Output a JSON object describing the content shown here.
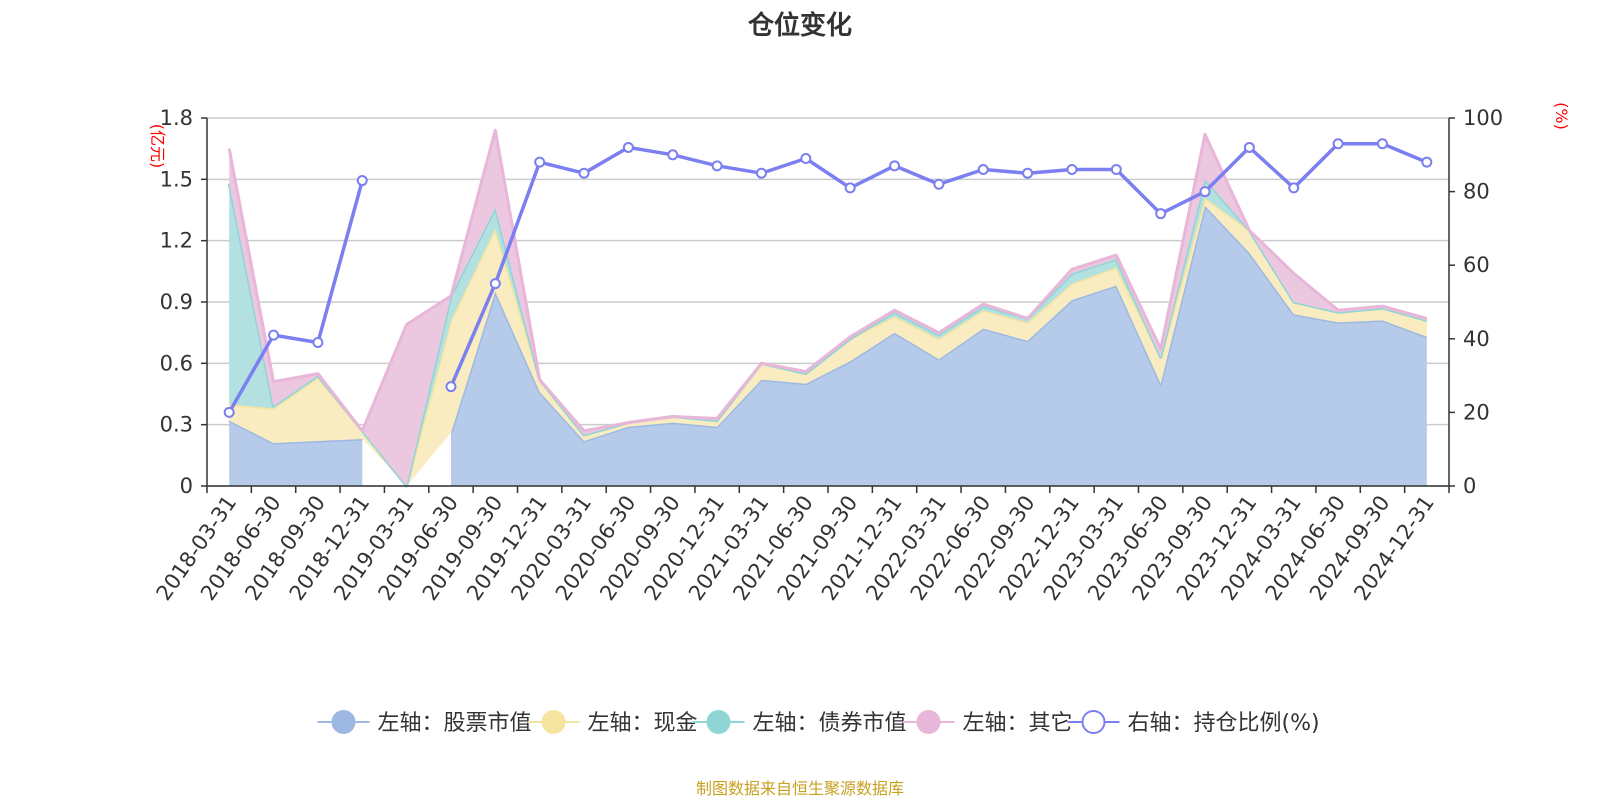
{
  "chart_data": {
    "type": "area",
    "title": "仓位变化",
    "left_axis_unit": "(亿元)",
    "right_axis_unit": "(%)",
    "categories": [
      "2018-03-31",
      "2018-06-30",
      "2018-09-30",
      "2018-12-31",
      "2019-03-31",
      "2019-06-30",
      "2019-09-30",
      "2019-12-31",
      "2020-03-31",
      "2020-06-30",
      "2020-09-30",
      "2020-12-31",
      "2021-03-31",
      "2021-06-30",
      "2021-09-30",
      "2021-12-31",
      "2022-03-31",
      "2022-06-30",
      "2022-09-30",
      "2022-12-31",
      "2023-03-31",
      "2023-06-30",
      "2023-09-30",
      "2023-12-31",
      "2024-03-31",
      "2024-06-30",
      "2024-09-30",
      "2024-12-31"
    ],
    "y_left_ticks": [
      "0",
      "0.3",
      "0.6",
      "0.9",
      "1.2",
      "1.5",
      "1.8"
    ],
    "y_left_range": [
      0,
      1.8
    ],
    "y_right_ticks": [
      "0",
      "20",
      "40",
      "60",
      "80",
      "100"
    ],
    "y_right_range": [
      0,
      100
    ],
    "stacked": true,
    "grid": true,
    "legend_position": "bottom",
    "series": [
      {
        "name": "左轴：股票市值",
        "axis": "left",
        "type": "area",
        "color": "#9db9e3",
        "fill": "#b6cbe9",
        "values": [
          0.32,
          0.21,
          0.22,
          0.23,
          null,
          0.26,
          0.95,
          0.46,
          0.22,
          0.29,
          0.31,
          0.29,
          0.52,
          0.5,
          0.61,
          0.75,
          0.62,
          0.77,
          0.71,
          0.91,
          0.98,
          0.5,
          1.37,
          1.14,
          0.84,
          0.8,
          0.81,
          0.73
        ]
      },
      {
        "name": "左轴：现金",
        "axis": "left",
        "type": "area",
        "color": "#f5e4a0",
        "fill": "#f8ecc0",
        "values": [
          0.08,
          0.17,
          0.31,
          0.04,
          0.0,
          0.55,
          0.31,
          0.06,
          0.03,
          0.02,
          0.03,
          0.03,
          0.08,
          0.05,
          0.11,
          0.08,
          0.1,
          0.09,
          0.09,
          0.08,
          0.09,
          0.13,
          0.04,
          0.11,
          0.06,
          0.05,
          0.06,
          0.08
        ]
      },
      {
        "name": "左轴：债券市值",
        "axis": "left",
        "type": "area",
        "color": "#8fd5d5",
        "fill": "#b3e0e0",
        "values": [
          1.08,
          0.01,
          0.01,
          0.0,
          0.0,
          0.12,
          0.1,
          0.0,
          0.0,
          0.0,
          0.0,
          0.0,
          0.0,
          0.0,
          0.0,
          0.02,
          0.02,
          0.02,
          0.02,
          0.05,
          0.04,
          0.0,
          0.09,
          0.0,
          0.0,
          0.0,
          0.0,
          0.0
        ]
      },
      {
        "name": "左轴：其它",
        "axis": "left",
        "type": "area",
        "color": "#e8b6d9",
        "fill": "#ecc8e0",
        "values": [
          0.17,
          0.12,
          0.01,
          0.0,
          0.79,
          0.0,
          0.38,
          0.0,
          0.02,
          0.0,
          0.0,
          0.01,
          0.0,
          0.01,
          0.01,
          0.01,
          0.01,
          0.01,
          0.0,
          0.02,
          0.02,
          0.04,
          0.22,
          0.0,
          0.14,
          0.01,
          0.01,
          0.01
        ]
      },
      {
        "name": "右轴：持仓比例(%)",
        "axis": "right",
        "type": "line",
        "color": "#7b7ff0",
        "values": [
          20,
          41,
          39,
          83,
          null,
          27,
          55,
          88,
          85,
          92,
          90,
          87,
          85,
          89,
          81,
          87,
          82,
          86,
          85,
          86,
          86,
          74,
          80,
          92,
          81,
          93,
          93,
          88
        ]
      }
    ]
  },
  "footer": {
    "source": "制图数据来自恒生聚源数据库"
  }
}
